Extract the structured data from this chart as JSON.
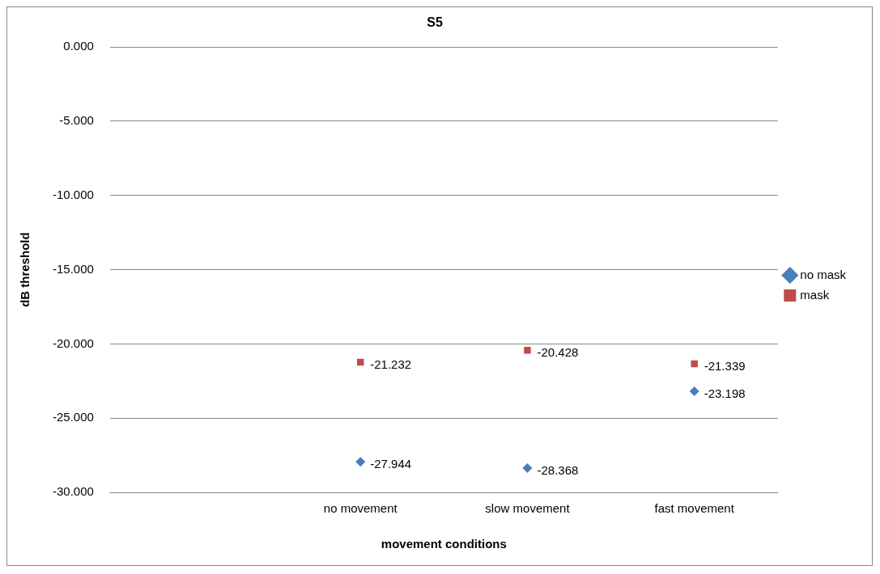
{
  "chart_data": {
    "type": "scatter",
    "title": "S5",
    "xlabel": "movement conditions",
    "ylabel": "dB threshold",
    "categories": [
      null,
      "no movement",
      "slow movement",
      "fast movement"
    ],
    "series": [
      {
        "name": "no mask",
        "color": "#4a7ebb",
        "marker": "diamond",
        "values": [
          null,
          -27.944,
          -28.368,
          -23.198
        ]
      },
      {
        "name": "mask",
        "color": "#be4b48",
        "marker": "square",
        "values": [
          null,
          -21.232,
          -20.428,
          -21.339
        ]
      }
    ],
    "ylim": [
      -30,
      0
    ],
    "yticks": [
      {
        "value": -30,
        "label": "-30.000"
      },
      {
        "value": -25,
        "label": "-25.000"
      },
      {
        "value": -20,
        "label": "-20.000"
      },
      {
        "value": -15,
        "label": "-15.000"
      },
      {
        "value": -10,
        "label": "-10.000"
      },
      {
        "value": -5,
        "label": "-5.000"
      },
      {
        "value": 0,
        "label": "0.000"
      }
    ],
    "grid": "y",
    "legend": "right",
    "data_labels": true
  }
}
